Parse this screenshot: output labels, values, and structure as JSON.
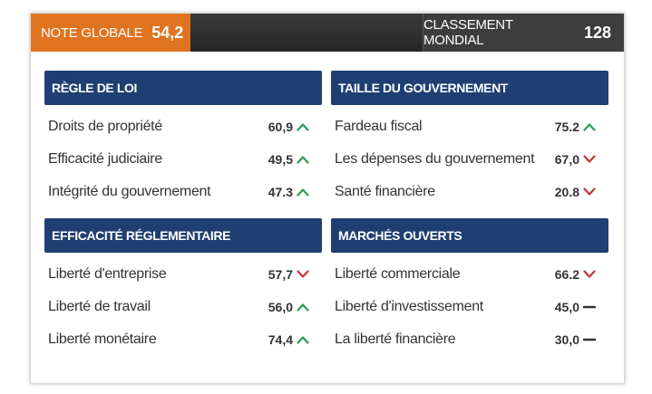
{
  "header": {
    "overall_label": "NOTE GLOBALE",
    "overall_value": "54,2",
    "rank_label": "CLASSEMENT MONDIAL",
    "rank_value": "128"
  },
  "colors": {
    "orange": "#e0731f",
    "navy": "#1f3f73",
    "up": "#2a9a55",
    "down": "#c8313a",
    "flat": "#333333"
  },
  "sections": [
    {
      "title": "RÈGLE DE LOI",
      "items": [
        {
          "label": "Droits de propriété",
          "value": "60,9",
          "trend": "up"
        },
        {
          "label": "Efficacité judiciaire",
          "value": "49,5",
          "trend": "up"
        },
        {
          "label": "Intégrité du gouvernement",
          "value": "47.3",
          "trend": "up"
        }
      ]
    },
    {
      "title": "TAILLE DU GOUVERNEMENT",
      "items": [
        {
          "label": "Fardeau fiscal",
          "value": "75.2",
          "trend": "up"
        },
        {
          "label": "Les dépenses du gouvernement",
          "value": "67,0",
          "trend": "down"
        },
        {
          "label": "Santé financière",
          "value": "20.8",
          "trend": "down"
        }
      ]
    },
    {
      "title": "EFFICACITÉ RÉGLEMENTAIRE",
      "items": [
        {
          "label": "Liberté d'entreprise",
          "value": "57,7",
          "trend": "down"
        },
        {
          "label": "Liberté de travail",
          "value": "56,0",
          "trend": "up"
        },
        {
          "label": "Liberté monétaire",
          "value": "74,4",
          "trend": "up"
        }
      ]
    },
    {
      "title": "MARCHÉS OUVERTS",
      "items": [
        {
          "label": "Liberté commerciale",
          "value": "66.2",
          "trend": "down"
        },
        {
          "label": "Liberté d'investissement",
          "value": "45,0",
          "trend": "flat"
        },
        {
          "label": "La liberté financière",
          "value": "30,0",
          "trend": "flat"
        }
      ]
    }
  ]
}
